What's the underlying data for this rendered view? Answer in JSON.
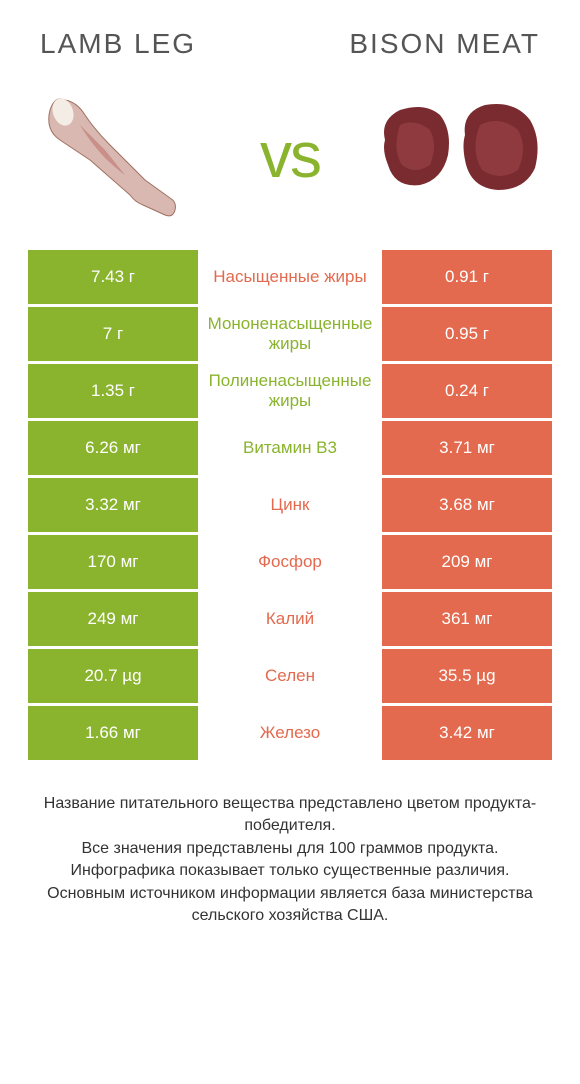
{
  "colors": {
    "green": "#8ab32e",
    "orange": "#e36a4e",
    "white": "#ffffff"
  },
  "header": {
    "left_title": "Lamb leg",
    "right_title": "Bison meat",
    "vs": "vs"
  },
  "rows": [
    {
      "left": "7.43 г",
      "mid": "Насыщенные жиры",
      "right": "0.91 г",
      "mid_color": "#e36a4e"
    },
    {
      "left": "7 г",
      "mid": "Мононенасыщенные жиры",
      "right": "0.95 г",
      "mid_color": "#8ab32e"
    },
    {
      "left": "1.35 г",
      "mid": "Полиненасыщенные жиры",
      "right": "0.24 г",
      "mid_color": "#8ab32e"
    },
    {
      "left": "6.26 мг",
      "mid": "Витамин B3",
      "right": "3.71 мг",
      "mid_color": "#8ab32e"
    },
    {
      "left": "3.32 мг",
      "mid": "Цинк",
      "right": "3.68 мг",
      "mid_color": "#e36a4e"
    },
    {
      "left": "170 мг",
      "mid": "Фосфор",
      "right": "209 мг",
      "mid_color": "#e36a4e"
    },
    {
      "left": "249 мг",
      "mid": "Калий",
      "right": "361 мг",
      "mid_color": "#e36a4e"
    },
    {
      "left": "20.7 µg",
      "mid": "Селен",
      "right": "35.5 µg",
      "mid_color": "#e36a4e"
    },
    {
      "left": "1.66 мг",
      "mid": "Железо",
      "right": "3.42 мг",
      "mid_color": "#e36a4e"
    }
  ],
  "footer": {
    "line1": "Название питательного вещества представлено цветом продукта-победителя.",
    "line2": "Все значения представлены для 100 граммов продукта.",
    "line3": "Инфографика показывает только существенные различия.",
    "line4": "Основным источником информации является база министерства сельского хозяйства США."
  }
}
